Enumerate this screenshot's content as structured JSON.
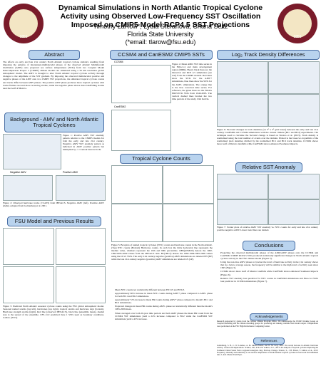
{
  "header": {
    "title": "Dynamical Simulations in North Atlantic Tropical Cyclone Activity using Observed Low-Frequency SST Oscillation Imposed on CMIP5 Model RCP4.5 SST Projections",
    "authors": "Timothy LaRow*, Lydia Stefanova, Chana Seitz",
    "affiliation": "Florida State University",
    "email": "(*email: tlarow@fsu.edu)",
    "logo_year": "1851"
  },
  "abstract": {
    "heading": "Abstract",
    "text": "The effects on early and late 21st century North Atlantic tropical cyclone statistics resulting from imposing the patterns of interannual-multidecadal phases of the observed Atlantic Multidecadal Oscillation (AMV) onto projected sea surface temperatures (SSTs) from two Coupled Model Intercomparison Project 5 (CMIP5) climate models are simulated using a 50 km resolution global atmospheric model. The AMV is thought to alter North Atlantic tropical cyclone activity through changes to the amplitude of the SST gradient. By imposing the observed multidecadal positive and negative phases of the AMV onto two CMIP5 SST projections, the simulated tropical cyclone counts and tracks differ between AMV phases. The positive AMV phase produces more tropical cyclones with tracks further east and more recurving storms, while the negative phase shows more landfalling storms near the Gulf of Mexico."
  },
  "background": {
    "heading": "Background - AMV and North Atlantic Tropical Cyclones",
    "fig1_caption": "Figure 1: Positive AMV SST anomaly pattern relative to the CMIP5 models for both the early and late 21st century. Negative AMV SST anomaly pattern as indicated in AMV positive pattern but multiplied by -1. Contour interval 0.1K.",
    "panel_labels": [
      "Negative AMV",
      "Positive AMV"
    ],
    "fig2_caption": "Figure 2: Observed hurricane tracks (>CAT3) from IBTrACS. Negative AMV (left). Positive AMV (right). Adapted from Goldenberg et al. 2001."
  },
  "fsu": {
    "heading": "FSU Model and Previous Results",
    "fig3_caption": "Figure 3: Predicted North Atlantic seasonal cyclone counts using the FSU global atmospheric model. Seasonal named storms (top left), hurricanes (top right), tropical storms and hurricane days (bottom). Hurricane strength storms (right). Red line (observed IBTrACS), black line (ensemble mean), shaded area is the spread of the ensemble. CFS-1/v2 predicted June 1 SSTs used as boundary conditions. LaRow (2013)."
  },
  "cmip": {
    "heading": "CCSM4 and CanESM2 CMIP5 SSTs",
    "panel_labels": [
      "CCSM4",
      "CanESM2"
    ],
    "fig4_caption": "Figure 4: Mean AMO SST time series in the Niño-3.4 and main development region (MDR). Heavy black lines are the historical and RCP 4.5 simulation (see text) from the CMIP5 models. Red lines show the SSTs for the AMV+ simulations, blue lines show the SSTs for the AMV- simulations. The orange line is the bias corrected time series. For reference, the green lines are the NOAA ERSSTv3b SSTs from 1940-2005. The vertical dashed lines bracket the two time periods of the study. Unit Kelvin."
  },
  "counts": {
    "heading": "Tropical Cyclone Counts",
    "fig5_caption": "Figure 5: Boxplots of named tropical cyclones (NTC) counts and hurricane counts in the North Atlantic. (Top) NTC counts (Bottom) Hurricane counts. In each box the thick horizontal line represents the median value, whiskers represent the 10th and 90th percentiles. OBS(ATMOS) denote the 1982-1994/1995-2009 values from the IBTrACS data. BC(1BC2) denote the 1982-1994/1995-2009 values using the OI v2 SSTs. The early 21st century negative (positive) AMV simulations are denoted EN (EP) while the late 21st century negative (positive) AMV simulations are labeled LN (LP).",
    "bullets": [
      "Mean NTC counts not statistically different between EN LN and EP LP.",
      "Approximately 60% increase in mean NTC counts during AMV+ phase compared to AMV- phase for both BC1 and BC2 simulations.",
      "Approximately 72% increase in mean HR counts during AMV+ phase compared to model's BC1 and BC2 simulations.",
      "Projected changes in mean HR counts during AMV- phase not statistically different than the model's 1995-2009 mean.",
      "When averaged over both 20-year time periods and both AMV phases the mean HR count from the CCSM4 SST simulations yield a 24% increase compared to BC2 while the CanESM2 SST simulations yield a 43% increase."
    ]
  },
  "log_track": {
    "heading": "Log₂ Track Density Differences",
    "fig6_caption": "Figure 6: Factorial changes in track densities (on 5° x 5° grid boxes) between the early and late 21st century CanESM2 and CCSM4 simulations with the current climate (BC1 and BC2) experiments. The technique used to calculate the factorial change is based on Strazzo et al. (2013). Track density is normalized using the total number of events over the domain. Plotted is the base-two logarithm of the normalized track densities divided by the normalized BC1 and BC2 track densities. CCSM4 shows more Gulf of Mexico landfalls while CanESM2 shows enhanced Southeast impacts."
  },
  "relative_sst": {
    "heading": "Relative SST Anomaly",
    "fig7_caption": "Figure 7: Scatter plots of relative AMV SST anomaly vs. NTC counts for early and late 21st century positive-negative AMV. Linear trend lines are dashed."
  },
  "conclusions": {
    "heading": "Conclusions",
    "bullets": [
      "Projecting the observed multidecadal phases of the AMO/AMV phases onto the CCSM4 and CanESM2 CMIP5 RCP4.5 SSTs produced statistically significant changes in North Atlantic tropical cyclone activity in the FSU climate model (Figure 5).",
      "Using the non-bias AMV phases to bracket the level of hurricane activity in the 21st century shows that in a below average season, the frequency will be similar to the high level of activity seen since 1995 (Figure 5).",
      "CCSM4 shows more Gulf of Mexico landfalls while CanESM2 shows enhanced Southeast impacts (Figure 6).",
      "Relative SST anomaly best predictor for NTC counts in CanESM2 simulations and Nino-3.4 SSTs best predictor in CCSM4 simulations (Figure 7)."
    ]
  },
  "acknowledgements": {
    "heading": "Acknowledgements",
    "text": "Research supported by grants from the NOAA Climate Program Office. We acknowledge the WCRP Working Group on Coupled Modelling and the climate modeling groups for producing and making available their model output. Computations were performed on the FSU High Performance Computing Center."
  },
  "references": {
    "heading": "References",
    "text": "Goldenberg, S. B., C. W. Landsea, A. M. Mestas-Nunez, and W. M. Gray, 2001: The recent increase in Atlantic hurricane activity: Causes and implications. Science, 293, 474-479. LaRow, T. E., 2013: An analysis of tropical cyclones impacting the Southeast United States from a regional reanalysis. Reg. Environ. Change. Strazzo, S., J. B. Elsner, T. LaRow, et al., 2013: Frequency, intensity and sensitivity to sea surface temperature of North Atlantic tropical cyclones in best-track and simulated data. J. Adv. Model. Earth Syst."
  }
}
